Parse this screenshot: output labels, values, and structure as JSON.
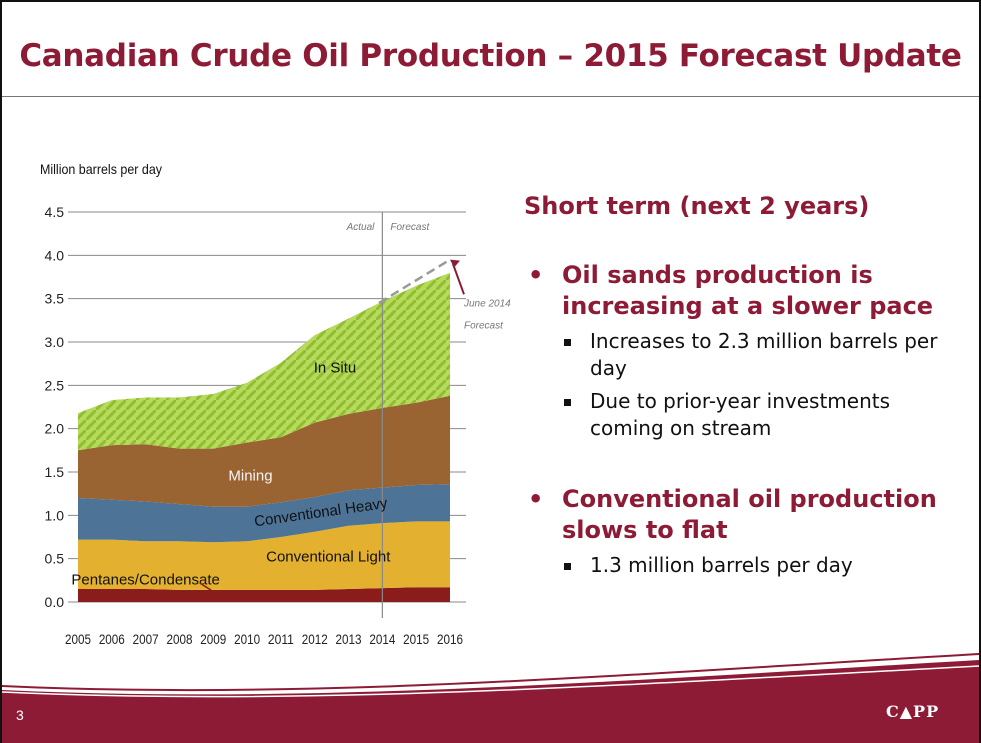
{
  "slide": {
    "title": "Canadian Crude Oil Production – 2015 Forecast Update",
    "number": "3",
    "logo_text": "C▲PP"
  },
  "text": {
    "heading": "Short term (next 2 years)",
    "bullets": [
      {
        "text": "Oil sands production is increasing at a slower pace",
        "sub": [
          "Increases to 2.3 million barrels per day",
          "Due to prior-year investments coming on stream"
        ]
      },
      {
        "text": "Conventional oil production slows to flat",
        "sub": [
          "1.3 million barrels per day"
        ]
      }
    ]
  },
  "colors": {
    "brand": "#8e1b35",
    "pentanes": "#8b1c1c",
    "conventional_light": "#e3b12f",
    "conventional_heavy": "#4d7396",
    "mining": "#9a6432",
    "in_situ": "#a8cf4c"
  },
  "chart_data": {
    "type": "area",
    "ylabel": "Million barrels per day",
    "x": [
      2005,
      2006,
      2007,
      2008,
      2009,
      2010,
      2011,
      2012,
      2013,
      2014,
      2015,
      2016
    ],
    "xticklabels": [
      "2005",
      "2006",
      "2007",
      "2008",
      "2009",
      "2010",
      "2011",
      "2012",
      "2013",
      "2014",
      "2015",
      "2016"
    ],
    "ylim": [
      0,
      4.5
    ],
    "yticks": [
      0.0,
      0.5,
      1.0,
      1.5,
      2.0,
      2.5,
      3.0,
      3.5,
      4.0,
      4.5
    ],
    "yticklabels": [
      "0.0",
      "0.5",
      "1.0",
      "1.5",
      "2.0",
      "2.5",
      "3.0",
      "3.5",
      "4.0",
      "4.5"
    ],
    "grid": true,
    "stacked": true,
    "series": [
      {
        "name": "Pentanes/Condensate",
        "values": [
          0.15,
          0.15,
          0.15,
          0.14,
          0.14,
          0.14,
          0.14,
          0.14,
          0.15,
          0.16,
          0.17,
          0.17
        ]
      },
      {
        "name": "Conventional Light",
        "values": [
          0.57,
          0.57,
          0.55,
          0.56,
          0.55,
          0.56,
          0.61,
          0.67,
          0.73,
          0.75,
          0.76,
          0.76
        ]
      },
      {
        "name": "Conventional Heavy",
        "values": [
          0.48,
          0.46,
          0.46,
          0.43,
          0.41,
          0.4,
          0.4,
          0.4,
          0.41,
          0.41,
          0.42,
          0.43
        ]
      },
      {
        "name": "Mining",
        "values": [
          0.55,
          0.63,
          0.66,
          0.64,
          0.67,
          0.74,
          0.75,
          0.86,
          0.88,
          0.92,
          0.95,
          1.02
        ]
      },
      {
        "name": "In Situ",
        "values": [
          0.43,
          0.52,
          0.54,
          0.59,
          0.63,
          0.69,
          0.86,
          1.01,
          1.1,
          1.23,
          1.35,
          1.42
        ]
      }
    ],
    "forecast_line": {
      "name": "June 2014 Forecast",
      "x": [
        2013.9,
        2016
      ],
      "values": [
        3.45,
        3.95
      ]
    },
    "divider": {
      "x": 2014,
      "left_label": "Actual",
      "right_label": "Forecast"
    },
    "annotations": [
      {
        "text": "June 2014 Forecast"
      }
    ]
  }
}
